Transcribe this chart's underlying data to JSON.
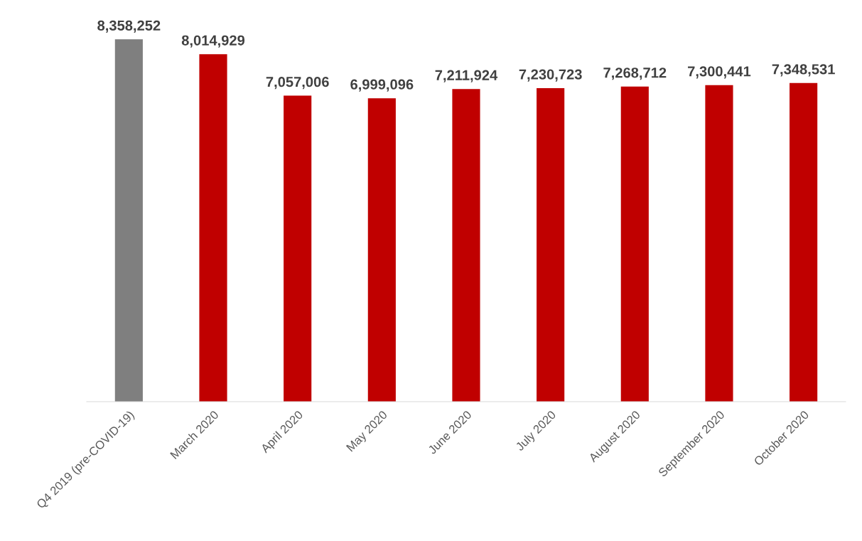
{
  "chart_data": {
    "type": "bar",
    "categories": [
      "Q4 2019 (pre-COVID-19)",
      "March 2020",
      "April 2020",
      "May 2020",
      "June 2020",
      "July 2020",
      "August 2020",
      "September 2020",
      "October 2020"
    ],
    "values": [
      8358252,
      8014929,
      7057006,
      6999096,
      7211924,
      7230723,
      7268712,
      7300441,
      7348531
    ],
    "colors": [
      "#7f7f7f",
      "#c00000",
      "#c00000",
      "#c00000",
      "#c00000",
      "#c00000",
      "#c00000",
      "#c00000",
      "#c00000"
    ],
    "value_labels": [
      "8,358,252",
      "8,014,929",
      "7,057,006",
      "6,999,096",
      "7,211,924",
      "7,230,723",
      "7,268,712",
      "7,300,441",
      "7,348,531"
    ],
    "grid": false,
    "legend": false
  }
}
